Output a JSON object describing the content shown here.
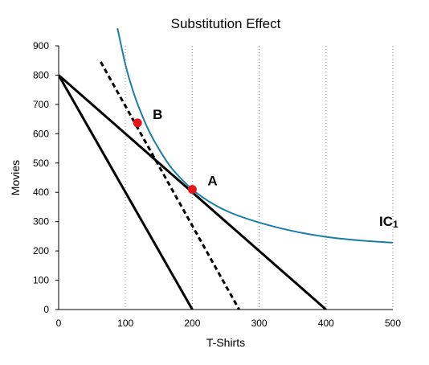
{
  "chart_data": {
    "type": "line",
    "title": "Substitution Effect",
    "xlabel": "T-Shirts",
    "ylabel": "Movies",
    "xlim": [
      0,
      500
    ],
    "ylim": [
      0,
      900
    ],
    "x_ticks": [
      "0",
      "100",
      "200",
      "300",
      "400",
      "500"
    ],
    "y_ticks": [
      "0",
      "100",
      "200",
      "300",
      "400",
      "500",
      "600",
      "700",
      "800",
      "900"
    ],
    "grid": "vertical dotted",
    "lines": [
      {
        "style": "solid",
        "color": "#000000",
        "points": [
          [
            0,
            800
          ],
          [
            400,
            0
          ]
        ]
      },
      {
        "style": "solid",
        "color": "#000000",
        "points": [
          [
            0,
            800
          ],
          [
            200,
            0
          ]
        ]
      },
      {
        "style": "dashed",
        "color": "#000000",
        "points": [
          [
            63,
            845
          ],
          [
            270,
            0
          ]
        ]
      }
    ],
    "indifference_curve": {
      "name": "IC",
      "subscript": "1",
      "color": "#1a7fa6",
      "points": [
        [
          88,
          960
        ],
        [
          100,
          835
        ],
        [
          110,
          755
        ],
        [
          120,
          690
        ],
        [
          135,
          610
        ],
        [
          150,
          548
        ],
        [
          170,
          480
        ],
        [
          200,
          410
        ],
        [
          230,
          362
        ],
        [
          260,
          328
        ],
        [
          300,
          297
        ],
        [
          350,
          268
        ],
        [
          400,
          248
        ],
        [
          450,
          236
        ],
        [
          500,
          228
        ]
      ]
    },
    "points": [
      {
        "label": "A",
        "x": 200,
        "y": 410,
        "color": "#e8141c"
      },
      {
        "label": "B",
        "x": 118,
        "y": 637,
        "color": "#e8141c"
      }
    ]
  }
}
